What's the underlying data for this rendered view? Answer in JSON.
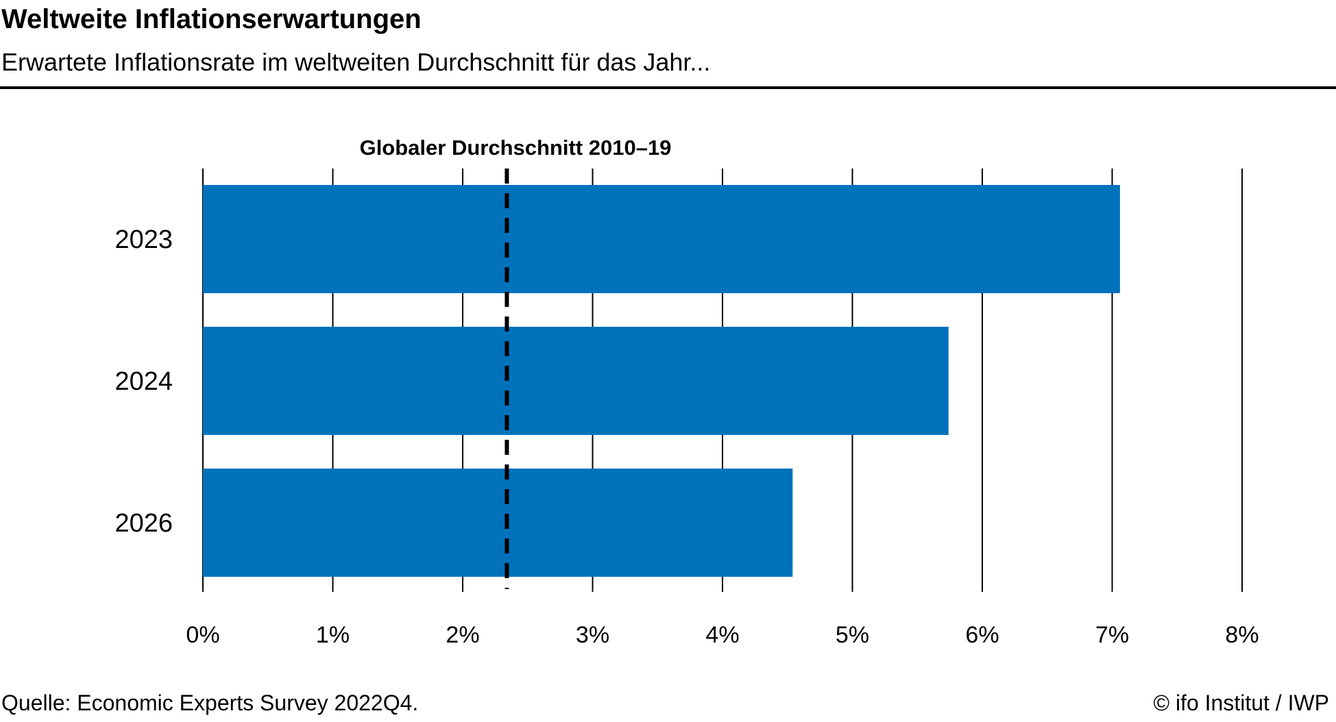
{
  "header": {
    "title": "Weltweite Inflationserwartungen",
    "subtitle": "Erwartete Inflationsrate im weltweiten Durchschnitt für das Jahr..."
  },
  "footer": {
    "source": "Quelle: Economic Experts Survey 2022Q4.",
    "copyright": "© ifo Institut / IWP"
  },
  "chart_data": {
    "type": "bar",
    "orientation": "horizontal",
    "categories": [
      "2023",
      "2024",
      "2026"
    ],
    "values": [
      7.06,
      5.74,
      4.54
    ],
    "xlim": [
      0,
      8
    ],
    "x_ticks": [
      0,
      1,
      2,
      3,
      4,
      5,
      6,
      7,
      8
    ],
    "x_tick_labels": [
      "0%",
      "1%",
      "2%",
      "3%",
      "4%",
      "5%",
      "6%",
      "7%",
      "8%"
    ],
    "grid": true,
    "bar_color": "#0072BC",
    "reference_line": {
      "label": "Globaler Durchschnitt 2010–19",
      "value": 2.34,
      "style": "dashed"
    }
  }
}
